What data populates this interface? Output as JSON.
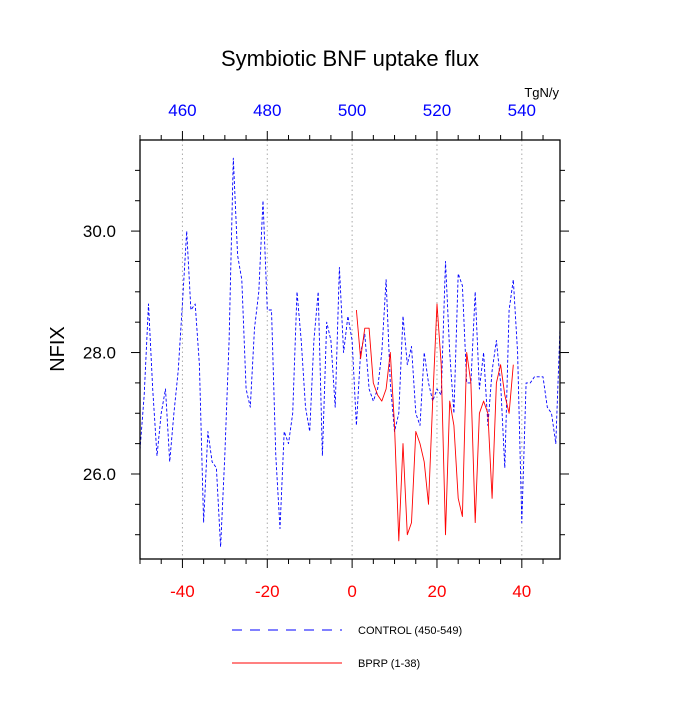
{
  "chart_data": {
    "type": "line",
    "title": "Symbiotic BNF uptake flux",
    "units": "TgN/y",
    "ylabel": "NFIX",
    "xlabel": "",
    "ylim": [
      24.6,
      31.5
    ],
    "xlim": [
      -50,
      49
    ],
    "top_xlim": [
      450,
      549
    ],
    "grid": "vertical dotted lines at bottom ticks -40, -20, 0, 20, 40",
    "legend_placement": "bottom-center",
    "y_ticks": [
      {
        "value": 26.0,
        "label": "26.0"
      },
      {
        "value": 28.0,
        "label": "28.0"
      },
      {
        "value": 30.0,
        "label": "30.0"
      }
    ],
    "x_ticks_bottom": [
      {
        "value": -40,
        "label": "-40"
      },
      {
        "value": -20,
        "label": "-20"
      },
      {
        "value": 0,
        "label": "0"
      },
      {
        "value": 20,
        "label": "20"
      },
      {
        "value": 40,
        "label": "40"
      }
    ],
    "x_ticks_top": [
      {
        "value": 460,
        "label": "460"
      },
      {
        "value": 480,
        "label": "480"
      },
      {
        "value": 500,
        "label": "500"
      },
      {
        "value": 520,
        "label": "520"
      },
      {
        "value": 540,
        "label": "540"
      }
    ],
    "colors": {
      "bottom_axis_labels": "#ff0000",
      "top_axis_labels": "#0000ff",
      "grid": "#aaaaaa",
      "axis": "#000000"
    },
    "series": [
      {
        "name": "CONTROL (450-549)",
        "color": "#0000ff",
        "style": "dashed",
        "x": [
          -50,
          -49,
          -48,
          -47,
          -46,
          -45,
          -44,
          -43,
          -42,
          -41,
          -40,
          -39,
          -38,
          -37,
          -36,
          -35,
          -34,
          -33,
          -32,
          -31,
          -30,
          -29,
          -28,
          -27,
          -26,
          -25,
          -24,
          -23,
          -22,
          -21,
          -20,
          -19,
          -18,
          -17,
          -16,
          -15,
          -14,
          -13,
          -12,
          -11,
          -10,
          -9,
          -8,
          -7,
          -6,
          -5,
          -4,
          -3,
          -2,
          -1,
          0,
          1,
          2,
          3,
          4,
          5,
          6,
          7,
          8,
          9,
          10,
          11,
          12,
          13,
          14,
          15,
          16,
          17,
          18,
          19,
          20,
          21,
          22,
          23,
          24,
          25,
          26,
          27,
          28,
          29,
          30,
          31,
          32,
          33,
          34,
          35,
          36,
          37,
          38,
          39,
          40,
          41,
          42,
          43,
          44,
          45,
          46,
          47,
          48,
          49
        ],
        "values": [
          26.4,
          27.3,
          28.8,
          27.4,
          26.3,
          27.0,
          27.4,
          26.2,
          27.0,
          27.7,
          28.8,
          30.0,
          28.7,
          28.8,
          27.8,
          25.2,
          26.7,
          26.2,
          26.1,
          24.8,
          26.3,
          28.2,
          31.2,
          29.6,
          29.2,
          27.4,
          27.1,
          28.4,
          29.0,
          30.5,
          28.7,
          28.7,
          26.3,
          25.1,
          26.7,
          26.5,
          27.0,
          29.0,
          28.2,
          27.1,
          26.7,
          28.2,
          29.0,
          26.3,
          28.5,
          28.2,
          27.1,
          29.4,
          28.0,
          28.6,
          28.2,
          26.8,
          28.0,
          28.3,
          27.4,
          27.2,
          27.4,
          28.0,
          29.2,
          27.5,
          26.7,
          27.0,
          28.6,
          27.8,
          28.1,
          27.0,
          26.8,
          28.0,
          27.5,
          27.2,
          27.4,
          27.3,
          29.5,
          28.0,
          27.0,
          29.3,
          29.1,
          27.5,
          27.5,
          29.0,
          27.4,
          28.0,
          26.8,
          27.7,
          28.2,
          27.5,
          26.1,
          28.7,
          29.2,
          28.0,
          25.2,
          27.5,
          27.5,
          27.6,
          27.6,
          27.6,
          27.1,
          27.0,
          26.5,
          28.4
        ]
      },
      {
        "name": "BPRP (1-38)",
        "color": "#ff0000",
        "style": "solid",
        "x": [
          1,
          2,
          3,
          4,
          5,
          6,
          7,
          8,
          9,
          10,
          11,
          12,
          13,
          14,
          15,
          16,
          17,
          18,
          19,
          20,
          21,
          22,
          23,
          24,
          25,
          26,
          27,
          28,
          29,
          30,
          31,
          32,
          33,
          34,
          35,
          36,
          37,
          38
        ],
        "values": [
          28.7,
          27.9,
          28.4,
          28.4,
          27.5,
          27.3,
          27.2,
          27.4,
          28.0,
          26.8,
          24.9,
          26.5,
          25.0,
          25.2,
          26.7,
          26.5,
          26.2,
          25.5,
          27.2,
          28.8,
          27.8,
          25.0,
          27.2,
          26.8,
          25.6,
          25.3,
          28.0,
          27.5,
          25.2,
          27.0,
          27.2,
          27.0,
          25.6,
          27.5,
          27.8,
          27.3,
          27.0,
          27.8
        ]
      }
    ]
  }
}
